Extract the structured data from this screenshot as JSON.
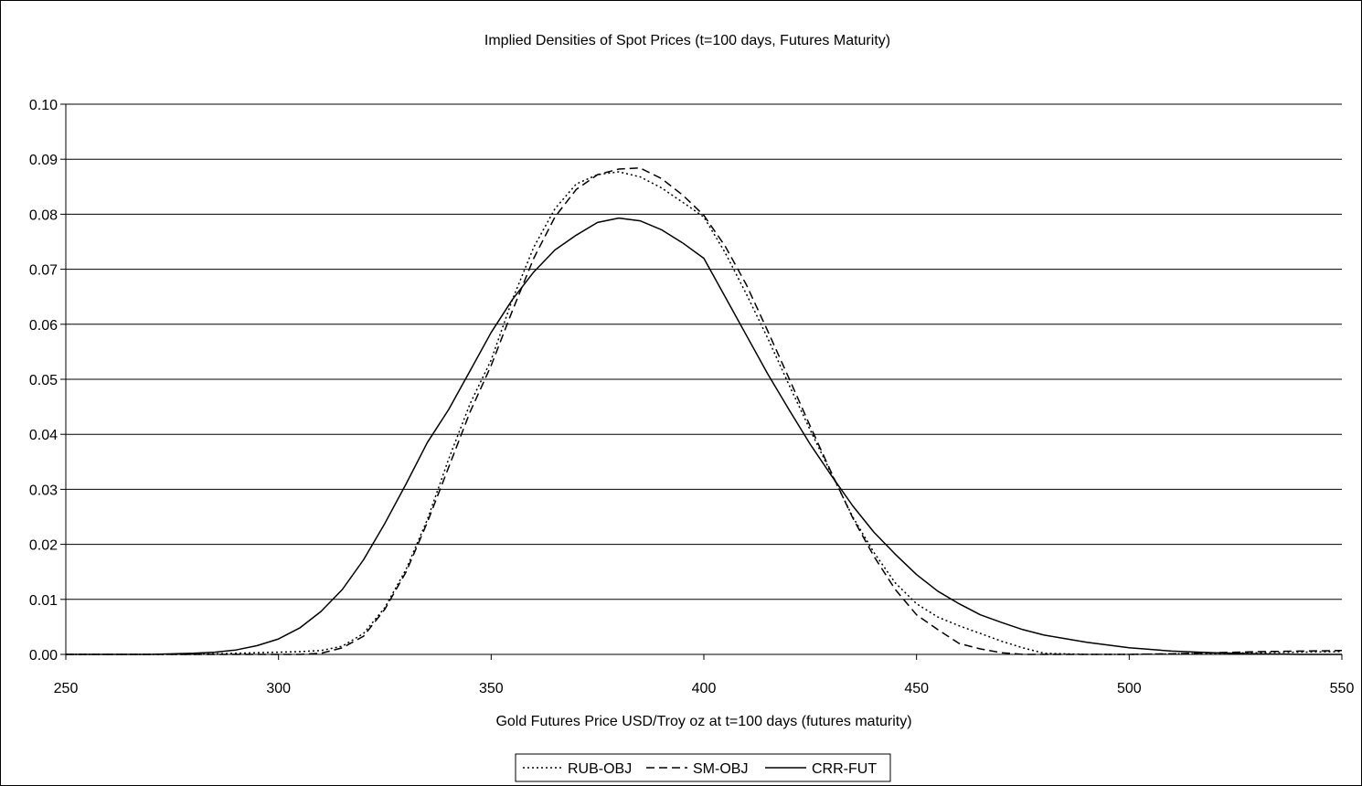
{
  "chart_data": {
    "type": "line",
    "title": "Implied Densities of Spot Prices (t=100 days, Futures Maturity)",
    "xlabel": "Gold Futures Price USD/Troy oz at t=100 days (futures maturity)",
    "ylabel": "",
    "xlim": [
      250,
      550
    ],
    "ylim": [
      0,
      0.1
    ],
    "x_ticks": [
      "250",
      "300",
      "350",
      "400",
      "450",
      "500",
      "550"
    ],
    "y_ticks": [
      "0.00",
      "0.01",
      "0.02",
      "0.03",
      "0.04",
      "0.05",
      "0.06",
      "0.07",
      "0.08",
      "0.09",
      "0.10"
    ],
    "grid": "horizontal",
    "legend_position": "bottom",
    "series": [
      {
        "name": "RUB-OBJ",
        "style": "dotted",
        "color": "#000000",
        "x": [
          250,
          260,
          270,
          280,
          290,
          300,
          305,
          310,
          315,
          320,
          325,
          330,
          335,
          340,
          345,
          350,
          355,
          360,
          365,
          370,
          375,
          380,
          385,
          390,
          395,
          400,
          405,
          410,
          415,
          420,
          425,
          430,
          435,
          440,
          445,
          450,
          455,
          460,
          465,
          470,
          475,
          480,
          490,
          500,
          510,
          520,
          530,
          540,
          550
        ],
        "values": [
          0.0,
          0.0,
          0.0,
          0.0,
          0.0002,
          0.0004,
          0.0005,
          0.0007,
          0.0015,
          0.0038,
          0.0085,
          0.0155,
          0.0245,
          0.0355,
          0.0455,
          0.0535,
          0.0645,
          0.074,
          0.081,
          0.0855,
          0.0872,
          0.0877,
          0.0868,
          0.0848,
          0.0822,
          0.0795,
          0.073,
          0.0655,
          0.0575,
          0.049,
          0.0408,
          0.0328,
          0.025,
          0.0185,
          0.013,
          0.0092,
          0.0068,
          0.0052,
          0.0038,
          0.0024,
          0.0012,
          0.0002,
          0.0,
          0.0,
          0.0001,
          0.0002,
          0.0003,
          0.0004,
          0.0005
        ]
      },
      {
        "name": "SM-OBJ",
        "style": "dashed",
        "color": "#000000",
        "x": [
          250,
          260,
          270,
          280,
          290,
          300,
          305,
          310,
          315,
          320,
          325,
          330,
          335,
          340,
          345,
          350,
          355,
          360,
          365,
          370,
          375,
          380,
          385,
          390,
          395,
          400,
          405,
          410,
          415,
          420,
          425,
          430,
          435,
          440,
          445,
          450,
          455,
          460,
          465,
          470,
          475,
          480,
          490,
          500,
          510,
          520,
          530,
          540,
          550
        ],
        "values": [
          0.0,
          0.0,
          0.0,
          0.0,
          0.0,
          0.0,
          0.0,
          0.0002,
          0.0012,
          0.0033,
          0.0082,
          0.015,
          0.024,
          0.034,
          0.044,
          0.0525,
          0.0625,
          0.072,
          0.0795,
          0.0845,
          0.0872,
          0.0882,
          0.0884,
          0.0865,
          0.0835,
          0.0798,
          0.0742,
          0.0672,
          0.0588,
          0.0502,
          0.0415,
          0.033,
          0.0248,
          0.0178,
          0.0118,
          0.0072,
          0.0045,
          0.002,
          0.001,
          0.0003,
          0.0,
          0.0,
          0.0,
          0.0,
          0.0001,
          0.0003,
          0.0005,
          0.0006,
          0.0007
        ]
      },
      {
        "name": "CRR-FUT",
        "style": "solid",
        "color": "#000000",
        "x": [
          250,
          260,
          270,
          280,
          285,
          290,
          295,
          300,
          305,
          310,
          315,
          320,
          325,
          330,
          335,
          340,
          345,
          350,
          355,
          360,
          365,
          370,
          375,
          380,
          385,
          390,
          395,
          400,
          405,
          410,
          415,
          420,
          425,
          430,
          435,
          440,
          445,
          450,
          455,
          460,
          465,
          470,
          475,
          480,
          490,
          500,
          510,
          520,
          530,
          540,
          550
        ],
        "values": [
          0.0,
          0.0,
          0.0,
          0.0002,
          0.0004,
          0.0008,
          0.0016,
          0.0028,
          0.0048,
          0.0078,
          0.0118,
          0.0172,
          0.0238,
          0.031,
          0.0385,
          0.0445,
          0.0515,
          0.0585,
          0.0645,
          0.0695,
          0.0735,
          0.0762,
          0.0785,
          0.0793,
          0.0788,
          0.0772,
          0.0748,
          0.072,
          0.065,
          0.058,
          0.051,
          0.0445,
          0.0382,
          0.0325,
          0.027,
          0.0222,
          0.0182,
          0.0145,
          0.0115,
          0.0092,
          0.0072,
          0.0058,
          0.0045,
          0.0035,
          0.0022,
          0.0012,
          0.0006,
          0.0003,
          0.0001,
          0.0,
          0.0
        ]
      }
    ]
  }
}
